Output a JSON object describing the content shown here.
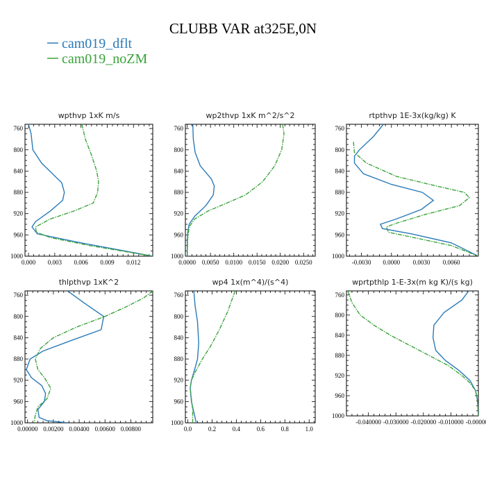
{
  "figure": {
    "title": "CLUBB VAR at325E,0N",
    "legend": [
      {
        "label": "cam019_dflt",
        "color": "#2a7ab8"
      },
      {
        "label": "cam019_noZM",
        "color": "#3aa33a"
      }
    ]
  },
  "chart_data": [
    {
      "type": "line",
      "title": "wpthvp  1xK m/s",
      "xlim": [
        -0.0004,
        0.0142
      ],
      "ylim": [
        1000,
        752
      ],
      "xticks": [
        0.0,
        0.003,
        0.006,
        0.009,
        0.012
      ],
      "xtick_labels": [
        "0.000",
        "0.003",
        "0.006",
        "0.009",
        "0.012"
      ],
      "yticks": [
        760,
        800,
        840,
        880,
        920,
        960,
        1000
      ],
      "series": [
        {
          "name": "cam019_dflt",
          "x": [
            0.0,
            0.0003,
            0.0005,
            0.0015,
            0.0038,
            0.0041,
            0.0039,
            0.0025,
            0.0008,
            0.0004,
            0.001,
            0.006,
            0.0142
          ],
          "y": [
            752,
            770,
            800,
            825,
            862,
            880,
            895,
            915,
            935,
            945,
            958,
            975,
            1000
          ]
        },
        {
          "name": "cam019_noZM",
          "x": [
            0.0061,
            0.0065,
            0.0072,
            0.0078,
            0.008,
            0.0079,
            0.0074,
            0.0052,
            0.0025,
            0.0008,
            0.0009,
            0.0025,
            0.007,
            0.0142
          ],
          "y": [
            752,
            780,
            810,
            840,
            860,
            880,
            900,
            915,
            930,
            945,
            955,
            965,
            980,
            1000
          ]
        }
      ]
    },
    {
      "type": "line",
      "title": "wp2thvp  1xK m^2/s^2",
      "xlim": [
        -0.0004,
        0.0275
      ],
      "ylim": [
        1000,
        752
      ],
      "xticks": [
        0.0,
        0.005,
        0.01,
        0.015,
        0.02,
        0.025
      ],
      "xtick_labels": [
        "0.0000",
        "0.0050",
        "0.0100",
        "0.0150",
        "0.0200",
        "0.0250"
      ],
      "yticks": [
        760,
        800,
        840,
        880,
        920,
        960,
        1000
      ],
      "series": [
        {
          "name": "cam019_dflt",
          "x": [
            0.0012,
            0.0013,
            0.0017,
            0.0028,
            0.0052,
            0.0058,
            0.0056,
            0.004,
            0.0016,
            0.0004,
            0.0001,
            0.0,
            0.0
          ],
          "y": [
            752,
            780,
            805,
            830,
            855,
            868,
            885,
            905,
            925,
            940,
            955,
            975,
            1000
          ]
        },
        {
          "name": "cam019_noZM",
          "x": [
            0.0205,
            0.0208,
            0.0203,
            0.0188,
            0.0162,
            0.0125,
            0.0085,
            0.0045,
            0.0016,
            0.0004,
            0.0001,
            0.0
          ],
          "y": [
            752,
            770,
            800,
            830,
            860,
            885,
            900,
            915,
            930,
            945,
            965,
            1000
          ]
        }
      ]
    },
    {
      "type": "line",
      "title": "rtpthvp  1E-3x(kg/kg) K",
      "xlim": [
        -0.0045,
        0.0087
      ],
      "ylim": [
        1000,
        752
      ],
      "xticks": [
        -0.003,
        0.0,
        0.003,
        0.006
      ],
      "xtick_labels": [
        "-0.0030",
        "0.0000",
        "0.0030",
        "0.0060"
      ],
      "yticks": [
        760,
        800,
        840,
        880,
        920,
        960,
        1000
      ],
      "series": [
        {
          "name": "cam019_dflt",
          "x": [
            -0.0008,
            -0.0018,
            -0.0032,
            -0.0037,
            -0.0037,
            -0.0028,
            0.0,
            0.0031,
            0.0042,
            0.003,
            0.0005,
            -0.0011,
            -0.0009,
            0.002,
            0.006,
            0.0087
          ],
          "y": [
            752,
            775,
            800,
            812,
            825,
            845,
            865,
            880,
            895,
            912,
            930,
            940,
            948,
            958,
            975,
            1000
          ]
        },
        {
          "name": "cam019_noZM",
          "x": [
            -0.0038,
            -0.0037,
            -0.0025,
            0.0005,
            0.0045,
            0.0073,
            0.0078,
            0.0068,
            0.0033,
            0.0005,
            -0.0005,
            -0.0003,
            0.003,
            0.006,
            0.0087
          ],
          "y": [
            785,
            805,
            825,
            850,
            868,
            880,
            890,
            905,
            922,
            938,
            945,
            955,
            968,
            980,
            1000
          ]
        }
      ]
    },
    {
      "type": "line",
      "title": "thlpthvp  1xK^2",
      "xlim": [
        -0.0002,
        0.0097
      ],
      "ylim": [
        1000,
        752
      ],
      "xticks": [
        0.0,
        0.002,
        0.004,
        0.006,
        0.008
      ],
      "xtick_labels": [
        "0.00000",
        "0.00200",
        "0.00400",
        "0.00600",
        "0.00800"
      ],
      "yticks": [
        760,
        800,
        840,
        880,
        920,
        960,
        1000
      ],
      "series": [
        {
          "name": "cam019_dflt",
          "x": [
            0.0031,
            0.0044,
            0.0059,
            0.0057,
            0.0034,
            0.0012,
            0.0002,
            -0.0001,
            0.0003,
            0.0011,
            0.0014,
            0.0013,
            0.0008,
            0.0009,
            0.0015,
            0.0031
          ],
          "y": [
            752,
            775,
            800,
            825,
            845,
            865,
            880,
            900,
            915,
            930,
            945,
            960,
            975,
            990,
            996,
            1000
          ]
        },
        {
          "name": "cam019_noZM",
          "x": [
            0.0097,
            0.009,
            0.0078,
            0.006,
            0.0038,
            0.002,
            0.001,
            0.0006,
            0.0008,
            0.0013,
            0.0018,
            0.0015,
            0.0008,
            0.0006,
            0.0005
          ],
          "y": [
            752,
            765,
            780,
            800,
            820,
            840,
            860,
            880,
            900,
            915,
            935,
            955,
            970,
            985,
            1000
          ]
        }
      ]
    },
    {
      "type": "line",
      "title": "wp4  1x(m^4)/(s^4)",
      "xlim": [
        -0.02,
        1.05
      ],
      "ylim": [
        1000,
        752
      ],
      "xticks": [
        0.0,
        0.2,
        0.4,
        0.6,
        0.8,
        1.0
      ],
      "xtick_labels": [
        "0.0",
        "0.2",
        "0.4",
        "0.6",
        "0.8",
        "1.0"
      ],
      "yticks": [
        760,
        800,
        840,
        880,
        920,
        960,
        1000
      ],
      "series": [
        {
          "name": "cam019_dflt",
          "x": [
            0.05,
            0.06,
            0.08,
            0.09,
            0.08,
            0.05,
            0.03,
            0.02,
            0.03,
            0.05,
            0.07
          ],
          "y": [
            752,
            780,
            810,
            850,
            880,
            905,
            920,
            935,
            960,
            980,
            1000
          ]
        },
        {
          "name": "cam019_noZM",
          "x": [
            0.39,
            0.33,
            0.26,
            0.19,
            0.12,
            0.06,
            0.03,
            0.02,
            0.03,
            0.04,
            0.04
          ],
          "y": [
            752,
            790,
            825,
            855,
            880,
            905,
            920,
            935,
            955,
            975,
            1000
          ]
        }
      ]
    },
    {
      "type": "line",
      "title": "wprtpthlp  1-E-3x(m kg K)/(s kg)",
      "xlim": [
        -0.048,
        0.0
      ],
      "ylim": [
        1000,
        752
      ],
      "xticks": [
        -0.04,
        -0.03,
        -0.02,
        -0.01,
        0.0
      ],
      "xtick_labels": [
        "-0.040000",
        "-0.030000",
        "-0.020000",
        "-0.010000",
        "-0.000000"
      ],
      "yticks": [
        760,
        800,
        840,
        880,
        920,
        960,
        1000
      ],
      "series": [
        {
          "name": "cam019_dflt",
          "x": [
            -0.0035,
            -0.006,
            -0.0125,
            -0.0162,
            -0.0165,
            -0.0155,
            -0.012,
            -0.007,
            -0.003,
            -0.001,
            -0.0003,
            0.0
          ],
          "y": [
            752,
            770,
            795,
            820,
            845,
            870,
            890,
            910,
            930,
            950,
            970,
            1000
          ]
        },
        {
          "name": "cam019_noZM",
          "x": [
            -0.0475,
            -0.046,
            -0.043,
            -0.038,
            -0.032,
            -0.025,
            -0.018,
            -0.011,
            -0.006,
            -0.003,
            -0.001,
            -0.0003,
            0.0
          ],
          "y": [
            752,
            775,
            800,
            820,
            840,
            860,
            880,
            900,
            920,
            935,
            950,
            970,
            1000
          ]
        }
      ]
    }
  ]
}
